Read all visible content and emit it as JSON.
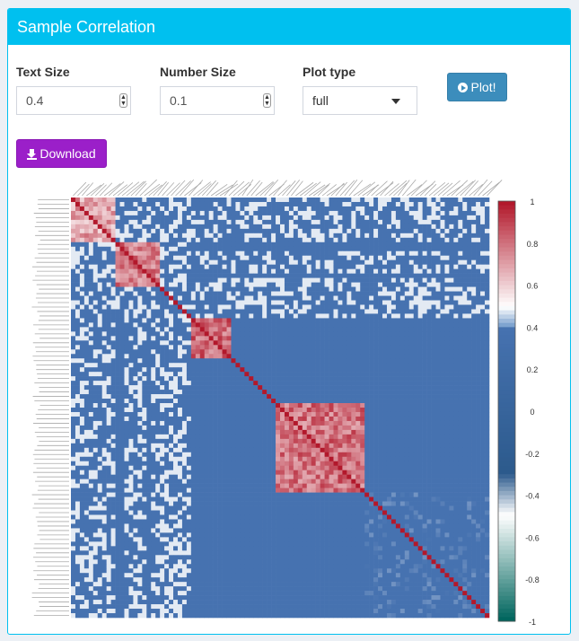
{
  "panel": {
    "title": "Sample Correlation"
  },
  "controls": {
    "text_size": {
      "label": "Text Size",
      "value": "0.4"
    },
    "number_size": {
      "label": "Number Size",
      "value": "0.1"
    },
    "plot_type": {
      "label": "Plot type",
      "value": "full"
    },
    "plot_button": "Plot!",
    "download_button": "Download"
  },
  "icons": {
    "plot": "play-circle-icon",
    "download": "download-icon",
    "spinner": "spinner-arrows-icon",
    "select": "caret-down-icon"
  },
  "chart_data": {
    "type": "heatmap",
    "title": "",
    "colorbar": {
      "ticks": [
        "1",
        "0.8",
        "0.6",
        "0.4",
        "0.2",
        "0",
        "-0.2",
        "-0.4",
        "-0.6",
        "-0.8",
        "-1"
      ],
      "range": [
        -1,
        1
      ],
      "colors": [
        "#b2182b",
        "#ffffff",
        "#4672b0",
        "#2c5a8c",
        "#ffffff",
        "#01665e"
      ]
    },
    "matrix_size": 94,
    "blocks": [
      {
        "start": 0,
        "end": 10,
        "correlation": 0.82
      },
      {
        "start": 10,
        "end": 20,
        "correlation": 0.9
      },
      {
        "start": 27,
        "end": 36,
        "correlation": 0.95
      },
      {
        "start": 46,
        "end": 66,
        "correlation": 0.93
      },
      {
        "start": 66,
        "end": 94,
        "correlation": 0.35
      }
    ],
    "background_correlation": 0.15,
    "colors": {
      "positive": "#b2182b",
      "neutral": "#ffffff",
      "mid": "#4672b0",
      "negative": "#01665e"
    }
  }
}
